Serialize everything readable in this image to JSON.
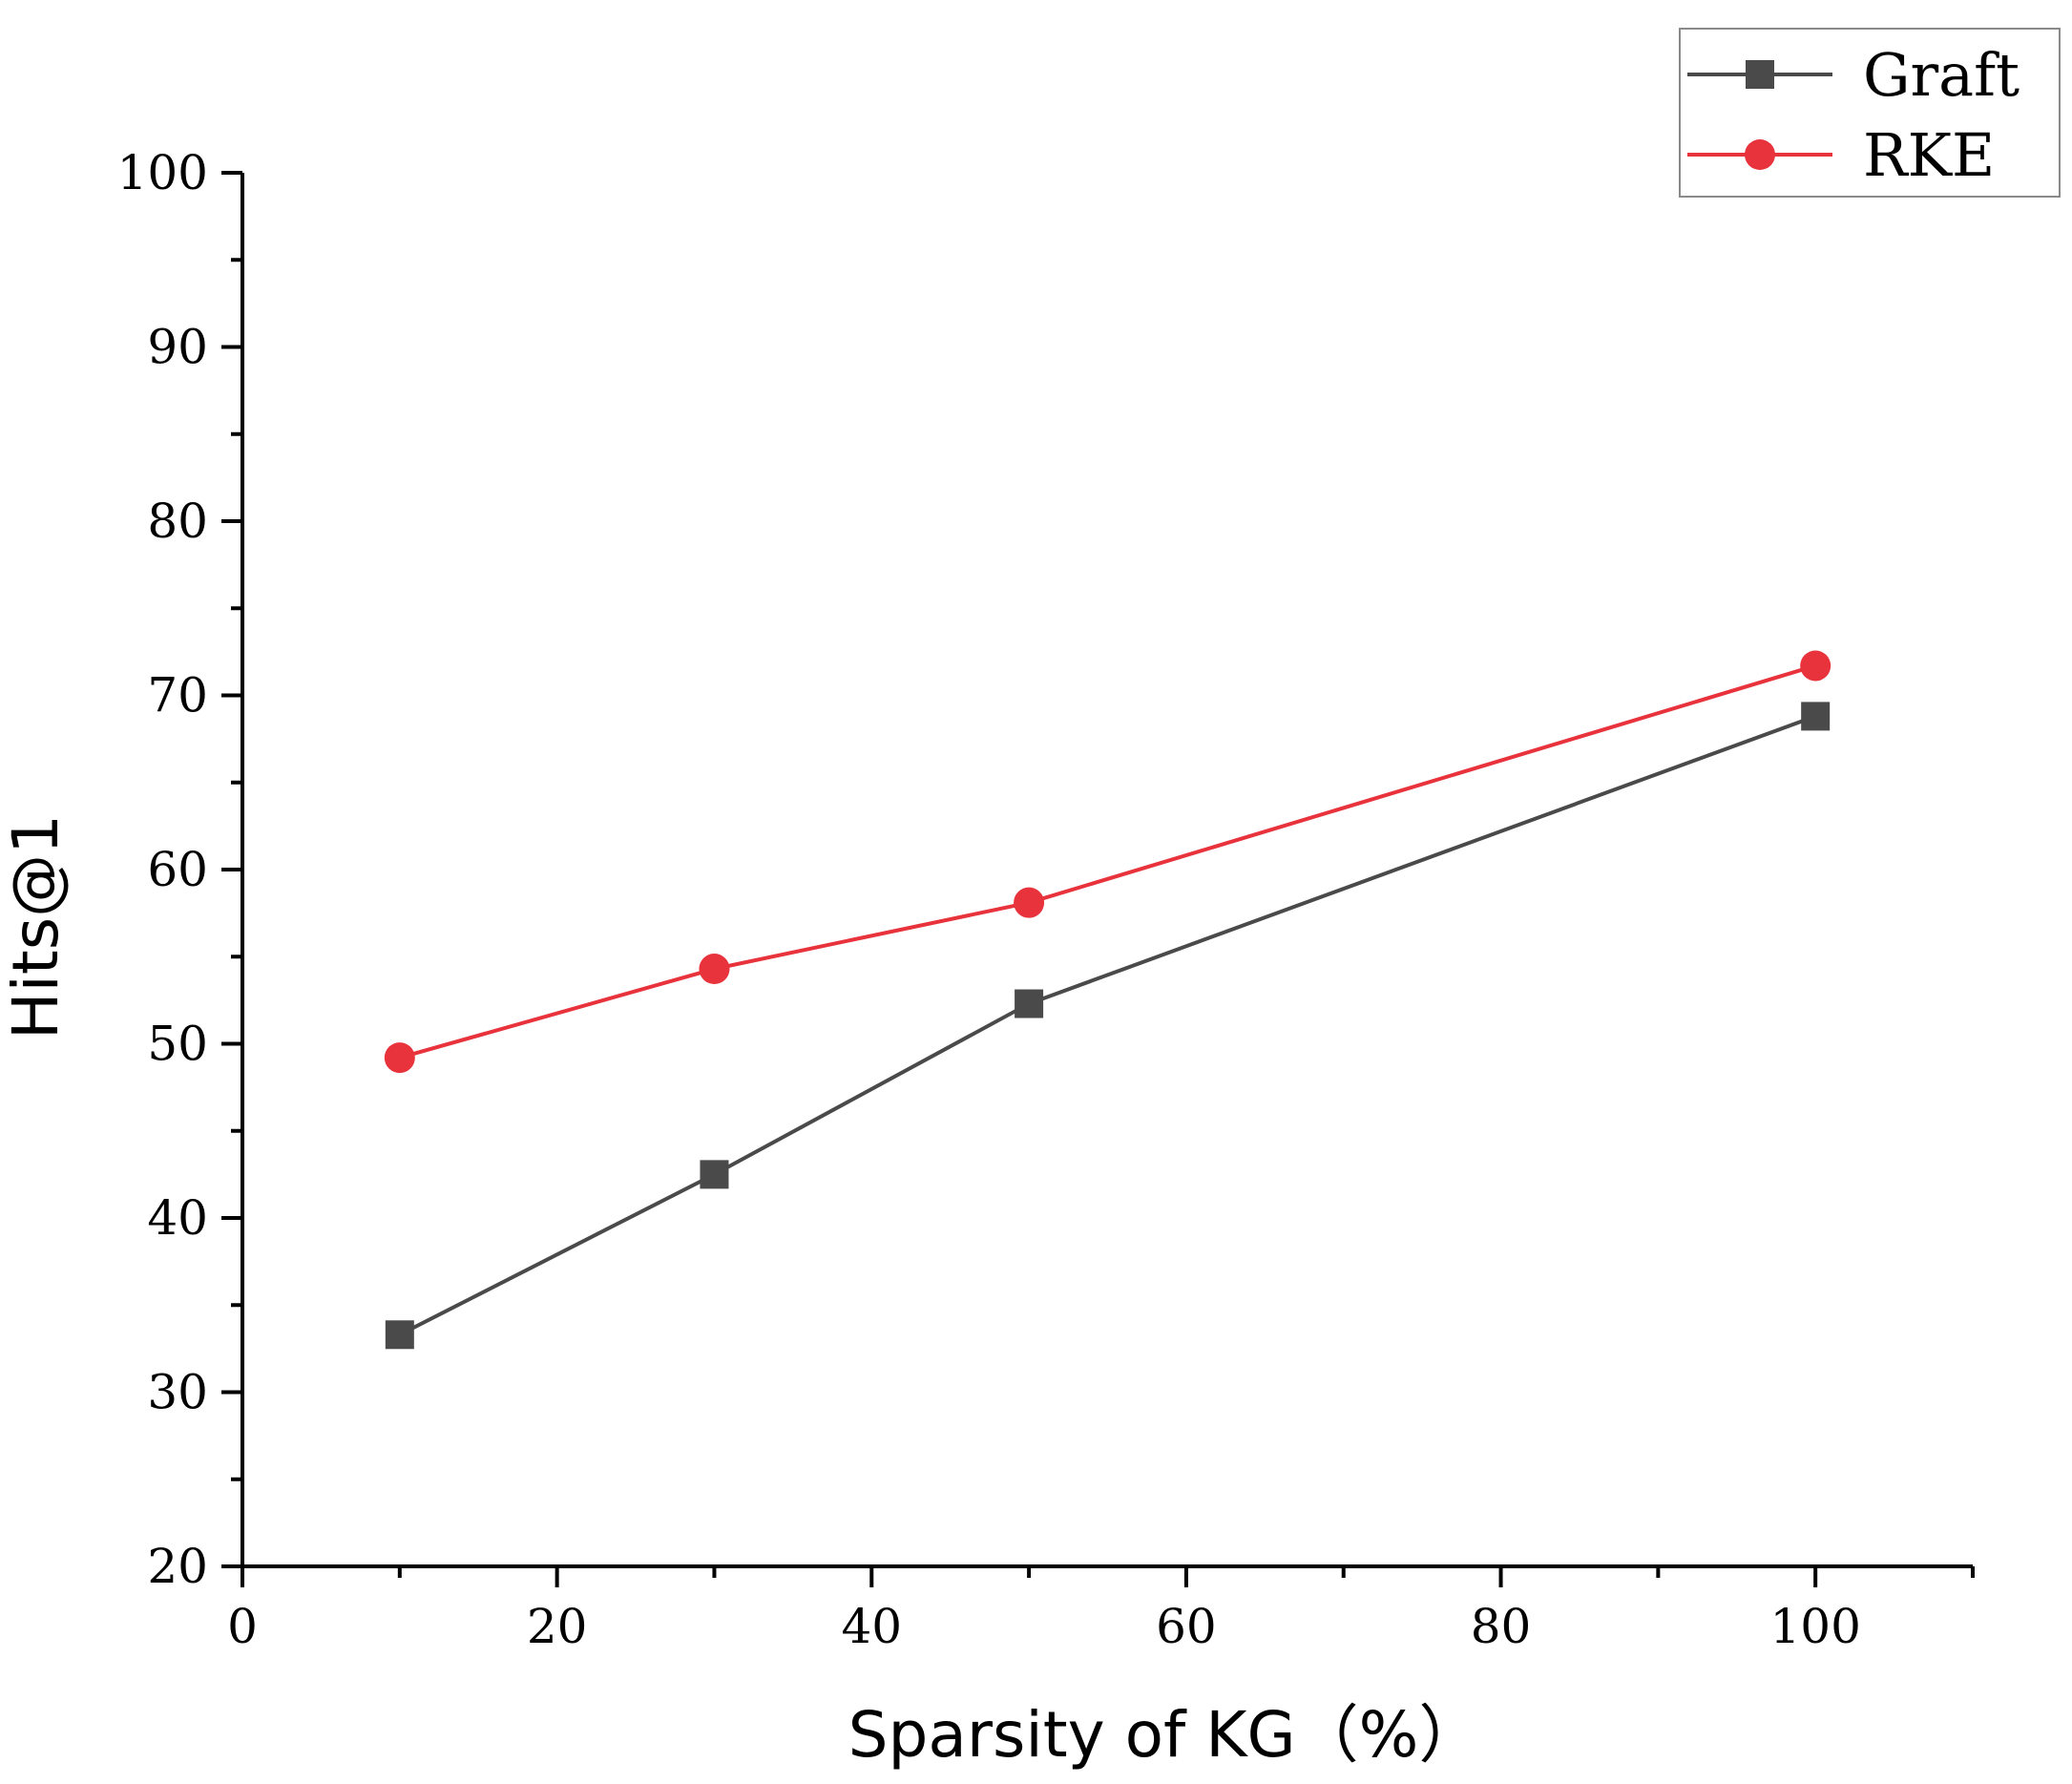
{
  "chart_data": {
    "type": "line",
    "title": "",
    "xlabel": "Sparsity of KG（%）",
    "ylabel": "Hits@1",
    "xlim": [
      0,
      110
    ],
    "ylim": [
      20,
      100
    ],
    "x_ticks": [
      0,
      20,
      40,
      60,
      80,
      100
    ],
    "y_ticks": [
      20,
      30,
      40,
      50,
      60,
      70,
      80,
      90,
      100
    ],
    "x_tick_labels": [
      "0",
      "20",
      "40",
      "60",
      "80",
      "100"
    ],
    "y_tick_labels": [
      "20",
      "30",
      "40",
      "50",
      "60",
      "70",
      "80",
      "90",
      "100"
    ],
    "grid": false,
    "legend_position": "top-right",
    "series": [
      {
        "name": "Graft",
        "marker": "square",
        "color": "#4a4a4a",
        "x": [
          10,
          30,
          50,
          100
        ],
        "y": [
          33.3,
          42.5,
          52.3,
          68.8
        ]
      },
      {
        "name": "RKE",
        "marker": "circle",
        "color": "#e8323c",
        "x": [
          10,
          30,
          50,
          100
        ],
        "y": [
          49.2,
          54.3,
          58.1,
          71.7
        ]
      }
    ]
  }
}
